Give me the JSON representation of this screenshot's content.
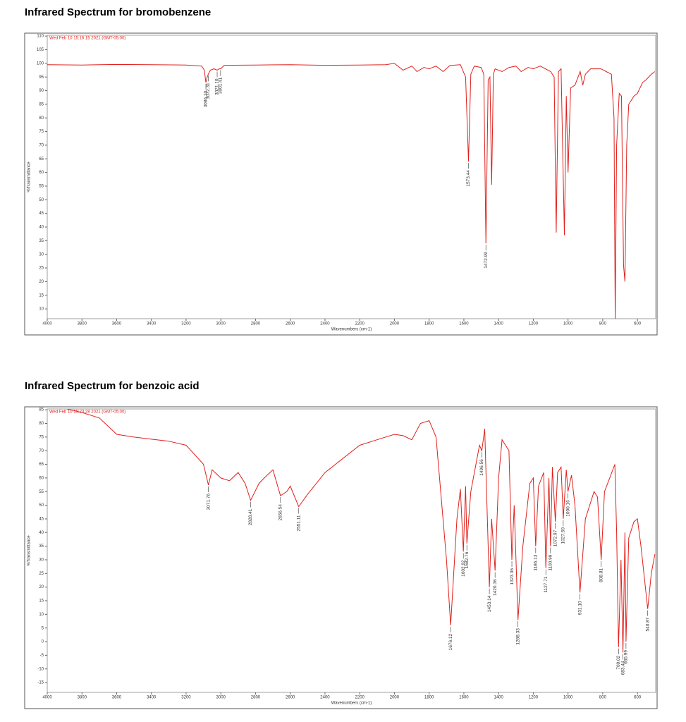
{
  "chart_data": [
    {
      "type": "line",
      "title": "Infrared Spectrum for bromobenzene",
      "stamp": "Wed Feb 10 15:16:15 2021 (GMT-05:00)",
      "xlabel": "Wavenumbers (cm-1)",
      "ylabel": "%Transmittance",
      "color": "#e0201c",
      "xlim": [
        4000,
        495
      ],
      "xticks": [
        4000,
        3800,
        3600,
        3400,
        3200,
        3000,
        2800,
        2600,
        2400,
        2200,
        2000,
        1800,
        1600,
        1400,
        1200,
        1000,
        800,
        600
      ],
      "ylim": [
        6.4,
        110.3
      ],
      "yticks": [
        10,
        15,
        20,
        25,
        30,
        35,
        40,
        45,
        50,
        55,
        60,
        65,
        70,
        75,
        80,
        85,
        90,
        95,
        100,
        105,
        110
      ],
      "x": [
        4000,
        3800,
        3600,
        3400,
        3200,
        3110,
        3095,
        3086.1,
        3078,
        3072.31,
        3060,
        3040,
        3021.1,
        3010,
        3001.41,
        2980,
        2800,
        2600,
        2400,
        2200,
        2050,
        2000,
        1950,
        1900,
        1870,
        1830,
        1800,
        1760,
        1720,
        1680,
        1620,
        1590,
        1573.44,
        1560,
        1540,
        1500,
        1485,
        1472.99,
        1460,
        1450,
        1440,
        1430,
        1420,
        1380,
        1340,
        1300,
        1270,
        1230,
        1200,
        1160,
        1100,
        1080,
        1068,
        1055,
        1040,
        1021,
        1010,
        1000,
        985,
        960,
        930,
        915,
        900,
        870,
        850,
        810,
        780,
        750,
        735,
        728,
        720,
        705,
        692,
        680,
        672,
        662,
        650,
        620,
        600,
        570,
        550,
        520,
        500
      ],
      "values": [
        99.5,
        99.4,
        99.6,
        99.5,
        99.4,
        99.0,
        97.5,
        93,
        95,
        96,
        97.5,
        98,
        97.5,
        98,
        98,
        99.3,
        99.4,
        99.5,
        99.3,
        99.4,
        99.5,
        100,
        97.5,
        99,
        97,
        98.5,
        98,
        99,
        97,
        99.2,
        99.5,
        95,
        64,
        96,
        99,
        98.5,
        96,
        34,
        94,
        95,
        55.5,
        96,
        98,
        97,
        98.5,
        99,
        97,
        98.5,
        98,
        99,
        97,
        95,
        38,
        97,
        98,
        37,
        88,
        60,
        91,
        92,
        97,
        92,
        96,
        98,
        98,
        98,
        97,
        96,
        80,
        6,
        70,
        89,
        88,
        26,
        20,
        70,
        85,
        88,
        89,
        93,
        94,
        96,
        97
      ],
      "peaks": [
        {
          "x": 3086.1,
          "label": "3086.10"
        },
        {
          "x": 3072.31,
          "label": "3072.31"
        },
        {
          "x": 3021.1,
          "label": "3021.10"
        },
        {
          "x": 3001.41,
          "label": "3001.41"
        },
        {
          "x": 1573.44,
          "label": "1573.44"
        },
        {
          "x": 1472.99,
          "label": "1472.99"
        }
      ]
    },
    {
      "type": "line",
      "title": "Infrared Spectrum for benzoic acid",
      "stamp": "Wed Feb 10 15:23:28 2021 (GMT-05:00)",
      "xlabel": "Wavenumbers (cm-1)",
      "ylabel": "%Transmittance",
      "color": "#e0201c",
      "xlim": [
        4000,
        495
      ],
      "xticks": [
        4000,
        3800,
        3600,
        3400,
        3200,
        3000,
        2800,
        2600,
        2400,
        2200,
        2000,
        1800,
        1600,
        1400,
        1200,
        1000,
        800,
        600
      ],
      "ylim": [
        -18.6,
        85.3
      ],
      "yticks": [
        -15,
        -10,
        -5,
        0,
        5,
        10,
        15,
        20,
        25,
        30,
        35,
        40,
        45,
        50,
        55,
        60,
        65,
        70,
        75,
        80,
        85
      ],
      "x": [
        4000,
        3900,
        3800,
        3700,
        3600,
        3500,
        3400,
        3300,
        3200,
        3100,
        3071.76,
        3050,
        3000,
        2950,
        2900,
        2860,
        2828.41,
        2780,
        2750,
        2700,
        2656.54,
        2620,
        2600,
        2551.11,
        2500,
        2400,
        2300,
        2200,
        2100,
        2000,
        1950,
        1900,
        1850,
        1800,
        1760,
        1700,
        1676.12,
        1640,
        1620,
        1602.92,
        1590,
        1582.76,
        1560,
        1510,
        1496.56,
        1480,
        1453.14,
        1440,
        1420.36,
        1400,
        1380,
        1340,
        1323.36,
        1310,
        1288.33,
        1260,
        1220,
        1200,
        1186.13,
        1170,
        1140,
        1127.71,
        1110,
        1100.99,
        1090,
        1072.97,
        1060,
        1040,
        1027.59,
        1010,
        1000.16,
        980,
        960,
        931.1,
        900,
        850,
        830,
        808.81,
        790,
        760,
        730,
        720,
        709.02,
        695,
        683.44,
        672,
        665.99,
        650,
        620,
        600,
        580,
        540.87,
        520,
        500
      ],
      "values": [
        86,
        85.5,
        84,
        82,
        76,
        75,
        74.2,
        73.5,
        72,
        65,
        57.4,
        63,
        60,
        59,
        62,
        58,
        51.8,
        58,
        60,
        63,
        53.5,
        55,
        57,
        49.5,
        54,
        62,
        67,
        72,
        74,
        76,
        75.5,
        74,
        80,
        81,
        75,
        30,
        6,
        45,
        56,
        33,
        57,
        36,
        55,
        72,
        70,
        78,
        20,
        45,
        26,
        60,
        74,
        70,
        30,
        50,
        8,
        35,
        58,
        60,
        35,
        57,
        62,
        27,
        60,
        35,
        64,
        44,
        62,
        64,
        45,
        63,
        55,
        61,
        50,
        18,
        45,
        55,
        53,
        30,
        55,
        60,
        65,
        40,
        -2,
        30,
        -4,
        40,
        0,
        38,
        44,
        45,
        35,
        12,
        25,
        32
      ],
      "peaks": [
        {
          "x": 3071.76,
          "label": "3071.76"
        },
        {
          "x": 2828.41,
          "label": "2828.41"
        },
        {
          "x": 2656.54,
          "label": "2656.54"
        },
        {
          "x": 2551.11,
          "label": "2551.11"
        },
        {
          "x": 1676.12,
          "label": "1676.12"
        },
        {
          "x": 1602.92,
          "label": "1602.92"
        },
        {
          "x": 1582.76,
          "label": "1582.76"
        },
        {
          "x": 1496.56,
          "label": "1496.56"
        },
        {
          "x": 1453.14,
          "label": "1453.14"
        },
        {
          "x": 1420.36,
          "label": "1420.36"
        },
        {
          "x": 1323.36,
          "label": "1323.36"
        },
        {
          "x": 1288.33,
          "label": "1288.33"
        },
        {
          "x": 1186.13,
          "label": "1186.13"
        },
        {
          "x": 1127.71,
          "label": "1127.71"
        },
        {
          "x": 1100.99,
          "label": "1100.99"
        },
        {
          "x": 1072.97,
          "label": "1072.97"
        },
        {
          "x": 1027.59,
          "label": "1027.59"
        },
        {
          "x": 1000.16,
          "label": "1000.16"
        },
        {
          "x": 931.1,
          "label": "931.10"
        },
        {
          "x": 808.81,
          "label": "808.81"
        },
        {
          "x": 709.02,
          "label": "709.02"
        },
        {
          "x": 683.44,
          "label": "683.44"
        },
        {
          "x": 665.99,
          "label": "665.99"
        },
        {
          "x": 540.87,
          "label": "540.87"
        }
      ]
    }
  ]
}
